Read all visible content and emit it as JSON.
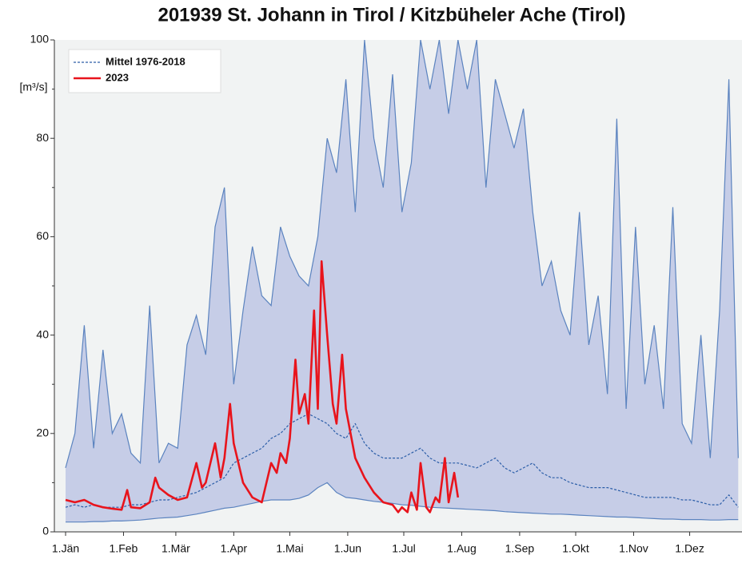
{
  "chart_data": {
    "type": "line",
    "title": "201939 St. Johann in Tirol / Kitzbüheler Ache (Tirol)",
    "ylabel": "[m³/s]",
    "xlim": [
      -6,
      362
    ],
    "ylim": [
      0,
      100
    ],
    "yticks": [
      0,
      20,
      40,
      60,
      80,
      100
    ],
    "yminor": [
      10,
      30,
      50,
      70,
      90
    ],
    "xticks": [
      {
        "value": 0,
        "label": "1.Jän"
      },
      {
        "value": 31,
        "label": "1.Feb"
      },
      {
        "value": 59,
        "label": "1.Mär"
      },
      {
        "value": 90,
        "label": "1.Apr"
      },
      {
        "value": 120,
        "label": "1.Mai"
      },
      {
        "value": 151,
        "label": "1.Jun"
      },
      {
        "value": 181,
        "label": "1.Jul"
      },
      {
        "value": 212,
        "label": "1.Aug"
      },
      {
        "value": 243,
        "label": "1.Sep"
      },
      {
        "value": 273,
        "label": "1.Okt"
      },
      {
        "value": 304,
        "label": "1.Nov"
      },
      {
        "value": 334,
        "label": "1.Dez"
      }
    ],
    "legend": "top-left",
    "x": [
      0,
      5,
      10,
      15,
      20,
      25,
      30,
      35,
      40,
      45,
      50,
      55,
      60,
      65,
      70,
      75,
      80,
      85,
      90,
      95,
      100,
      105,
      110,
      115,
      120,
      125,
      130,
      135,
      140,
      145,
      150,
      155,
      160,
      165,
      170,
      175,
      180,
      185,
      190,
      195,
      200,
      205,
      210,
      215,
      220,
      225,
      230,
      235,
      240,
      245,
      250,
      255,
      260,
      265,
      270,
      275,
      280,
      285,
      290,
      295,
      300,
      305,
      310,
      315,
      320,
      325,
      330,
      335,
      340,
      345,
      350,
      355,
      360
    ],
    "band": {
      "color": "#c6cde7",
      "line_color": "#5b83bf",
      "upper": [
        13,
        20,
        42,
        17,
        37,
        20,
        24,
        16,
        14,
        46,
        14,
        18,
        17,
        38,
        44,
        36,
        62,
        70,
        30,
        45,
        58,
        48,
        46,
        62,
        56,
        52,
        50,
        60,
        80,
        73,
        92,
        65,
        100,
        80,
        70,
        93,
        65,
        75,
        100,
        90,
        100,
        85,
        100,
        90,
        100,
        70,
        92,
        85,
        78,
        86,
        65,
        50,
        55,
        45,
        40,
        65,
        38,
        48,
        28,
        84,
        25,
        62,
        30,
        42,
        25,
        66,
        22,
        18,
        40,
        15,
        45,
        92,
        15
      ],
      "lower": [
        2,
        2,
        2,
        2.1,
        2.1,
        2.2,
        2.2,
        2.3,
        2.4,
        2.6,
        2.8,
        2.9,
        3,
        3.3,
        3.6,
        4,
        4.4,
        4.8,
        5,
        5.4,
        5.8,
        6.2,
        6.5,
        6.5,
        6.5,
        6.8,
        7.5,
        9,
        10,
        8,
        7,
        6.8,
        6.5,
        6.2,
        6,
        5.8,
        5.5,
        5.4,
        5.2,
        5,
        4.9,
        4.8,
        4.7,
        4.6,
        4.5,
        4.4,
        4.3,
        4.1,
        4,
        3.9,
        3.8,
        3.7,
        3.6,
        3.6,
        3.5,
        3.4,
        3.3,
        3.2,
        3.1,
        3,
        3,
        2.9,
        2.8,
        2.7,
        2.6,
        2.6,
        2.5,
        2.5,
        2.5,
        2.4,
        2.4,
        2.5,
        2.5
      ]
    },
    "series": [
      {
        "name": "Mittel 1976-2018",
        "color": "#2c5ea8",
        "style": "dashed",
        "values": [
          5,
          5.5,
          5,
          5.5,
          5,
          5,
          5,
          5.5,
          5.5,
          6,
          6.5,
          6.5,
          7,
          7.5,
          8,
          9,
          10,
          11,
          14,
          15,
          16,
          17,
          19,
          20,
          22,
          23,
          24,
          23,
          22,
          20,
          19,
          22,
          18,
          16,
          15,
          15,
          15,
          16,
          17,
          15,
          14,
          14,
          14,
          13.5,
          13,
          14,
          15,
          13,
          12,
          13,
          14,
          12,
          11,
          11,
          10,
          9.5,
          9,
          9,
          9,
          8.5,
          8,
          7.5,
          7,
          7,
          7,
          7,
          6.5,
          6.5,
          6,
          5.5,
          5.5,
          7.5,
          5
        ]
      },
      {
        "name": "2023",
        "color": "#e8141c",
        "style": "solid",
        "x": [
          0,
          5,
          10,
          15,
          20,
          25,
          30,
          33,
          35,
          40,
          45,
          48,
          50,
          55,
          60,
          65,
          70,
          73,
          75,
          80,
          83,
          85,
          88,
          90,
          95,
          100,
          105,
          110,
          113,
          115,
          118,
          120,
          123,
          125,
          128,
          130,
          133,
          135,
          137,
          140,
          143,
          145,
          148,
          150,
          155,
          160,
          165,
          170,
          175,
          178,
          180,
          183,
          185,
          188,
          190,
          193,
          195,
          198,
          200,
          203,
          205,
          208,
          210
        ],
        "values": [
          6.5,
          6,
          6.5,
          5.5,
          5,
          4.7,
          4.5,
          8.5,
          5,
          4.8,
          6,
          11,
          9,
          7.5,
          6.5,
          7,
          14,
          9,
          10,
          18,
          11,
          15,
          26,
          18,
          10,
          7,
          6,
          14,
          12,
          16,
          14,
          19,
          35,
          24,
          28,
          22,
          45,
          25,
          55,
          40,
          26,
          22,
          36,
          25,
          15,
          11,
          8,
          6,
          5.5,
          4,
          5,
          4,
          8,
          4.5,
          14,
          5,
          4,
          7,
          6,
          15,
          6,
          12,
          7
        ]
      }
    ]
  }
}
